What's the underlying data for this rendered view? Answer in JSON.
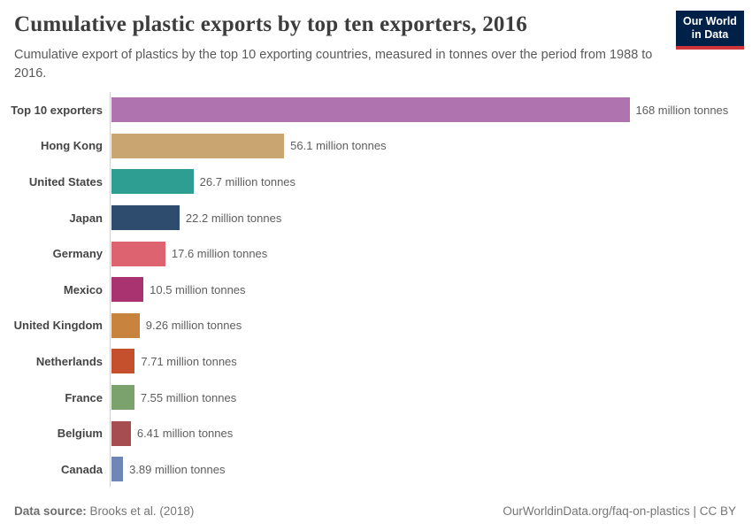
{
  "header": {
    "logo": {
      "line1": "Our World",
      "line2": "in Data",
      "bg_color": "#002147",
      "accent_color": "#d0353a"
    }
  },
  "chart_data": {
    "type": "bar",
    "orientation": "horizontal",
    "title": "Cumulative plastic exports by top ten exporters, 2016",
    "subtitle": "Cumulative export of plastics by the top 10 exporting countries, measured in tonnes over the period from 1988 to 2016.",
    "categories": [
      "Top 10 exporters",
      "Hong Kong",
      "United States",
      "Japan",
      "Germany",
      "Mexico",
      "United Kingdom",
      "Netherlands",
      "France",
      "Belgium",
      "Canada"
    ],
    "values": [
      168,
      56.1,
      26.7,
      22.2,
      17.6,
      10.5,
      9.26,
      7.71,
      7.55,
      6.41,
      3.89
    ],
    "value_labels": [
      "168 million tonnes",
      "56.1 million tonnes",
      "26.7 million tonnes",
      "22.2 million tonnes",
      "17.6 million tonnes",
      "10.5 million tonnes",
      "9.26 million tonnes",
      "7.71 million tonnes",
      "7.55 million tonnes",
      "6.41 million tonnes",
      "3.89 million tonnes"
    ],
    "bar_colors": [
      "#af73b0",
      "#c9a571",
      "#2f9e92",
      "#2e4c6e",
      "#dd6371",
      "#a93270",
      "#c8833f",
      "#c4502e",
      "#7ba26c",
      "#a64d52",
      "#6e87b7"
    ],
    "xlabel": "",
    "ylabel": "",
    "xlim": [
      0,
      168
    ],
    "grid": false,
    "legend": false,
    "axis_color": "#cfcfcf",
    "unit": "million tonnes"
  },
  "footer": {
    "source_label": "Data source:",
    "source_value": "Brooks et al. (2018)",
    "credit": "OurWorldinData.org/faq-on-plastics | CC BY"
  }
}
